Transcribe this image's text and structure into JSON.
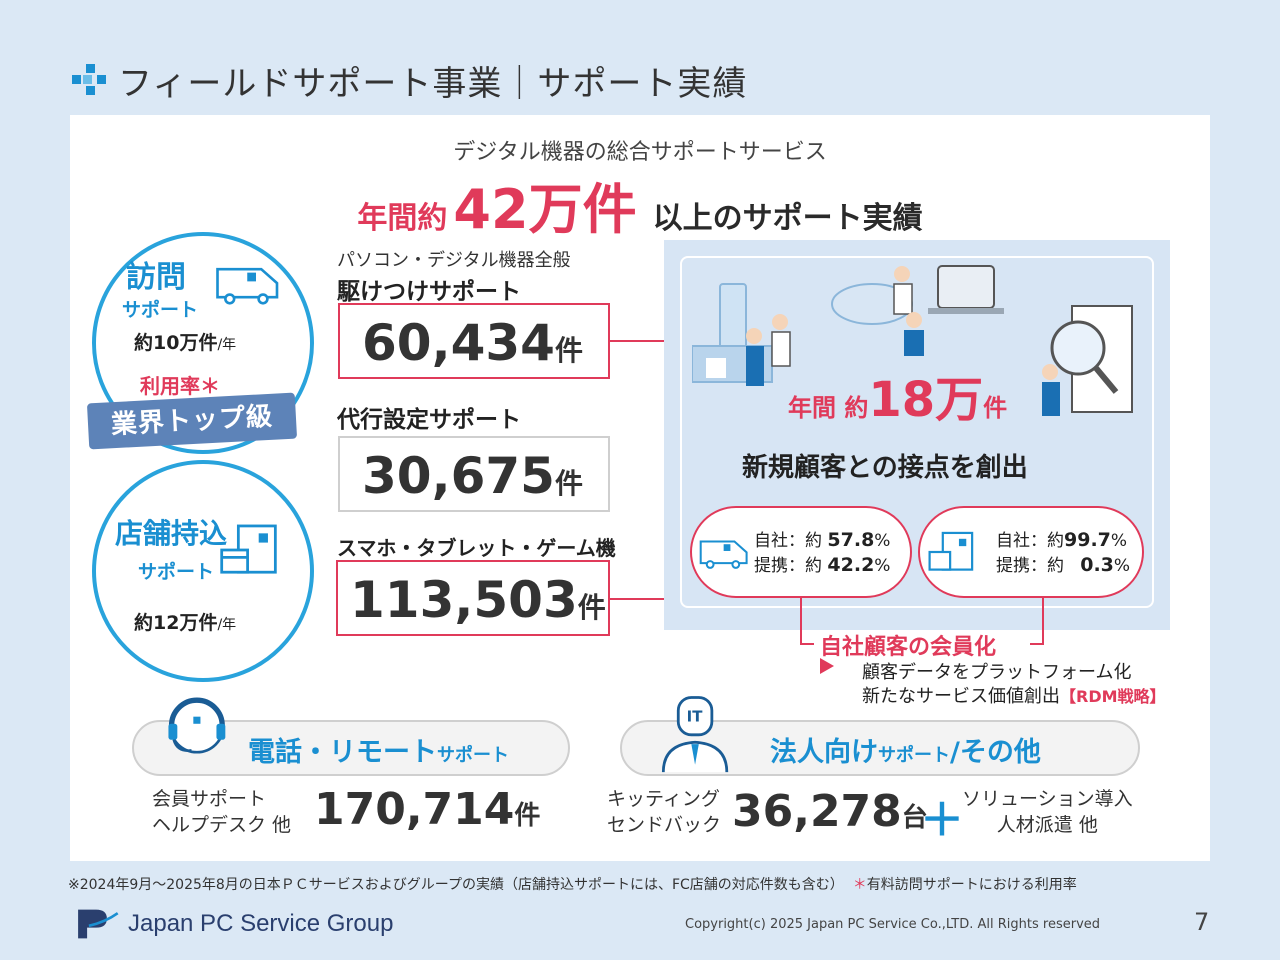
{
  "title": "フィールドサポート事業｜サポート実績",
  "subtitle": "デジタル機器の総合サポートサービス",
  "headline": {
    "prefix": "年間約",
    "number": "42万件",
    "suffix": "以上のサポート実績"
  },
  "visit": {
    "title": "訪問",
    "subtitle": "サポート",
    "count": "約10万件",
    "unit": "/年",
    "util_label": "利用率＊",
    "ribbon": "業界トップ級"
  },
  "store": {
    "title": "店舗持込",
    "subtitle": "サポート",
    "count": "約12万件",
    "unit": "/年"
  },
  "categories": [
    {
      "small": "パソコン・デジタル機器全般",
      "label": "駆けつけサポート",
      "value": "60,434",
      "unit": "件"
    },
    {
      "small": "",
      "label": "代行設定サポート",
      "value": "30,675",
      "unit": "件"
    },
    {
      "small": "",
      "label": "スマホ・タブレット・ゲーム機",
      "value": "113,503",
      "unit": "件"
    }
  ],
  "right": {
    "annual_prefix": "年間 約",
    "annual_number": "18万",
    "annual_unit": "件",
    "contact_text": "新規顧客との接点を創出",
    "pill1": {
      "line1_label": "自社：約",
      "line1_value": "57.8",
      "line2_label": "提携：約",
      "line2_value": "42.2",
      "pct": "%"
    },
    "pill2": {
      "line1_label": "自社：約",
      "line1_value": "99.7",
      "line2_label": "提携：約",
      "line2_value": "0.3",
      "pct": "%"
    },
    "membership": "自社顧客の会員化",
    "bullet1": "顧客データをプラットフォーム化",
    "bullet2": "新たなサービス価値創出",
    "rdm": "【RDM戦略】"
  },
  "phone": {
    "title": "電話・リモート",
    "title_small": "サポート",
    "label1": "会員サポート",
    "label2": "ヘルプデスク 他",
    "value": "170,714",
    "unit": "件"
  },
  "corp": {
    "title": "法人向け",
    "title_small": "サポート",
    "title_suffix": "/その他",
    "label1": "キッティング",
    "label2": "センドバック",
    "value": "36,278",
    "unit": "台",
    "plus": "＋",
    "label3": "ソリューション導入",
    "label4": "人材派遣 他"
  },
  "footnote": {
    "main": "※2024年9月～2025年8月の日本ＰＣサービスおよびグループの実績（店舗持込サポートには、FC店舗の対応件数も含む）",
    "star": "＊",
    "star_text": "有料訪問サポートにおける利用率"
  },
  "company": "Japan PC Service Group",
  "copyright": "Copyright(c) 2025 Japan PC Service Co.,LTD. All Rights reserved",
  "page": "7",
  "colors": {
    "accent_red": "#e03a5a",
    "accent_blue": "#1a8fd1",
    "ribbon": "#5d83b8"
  }
}
